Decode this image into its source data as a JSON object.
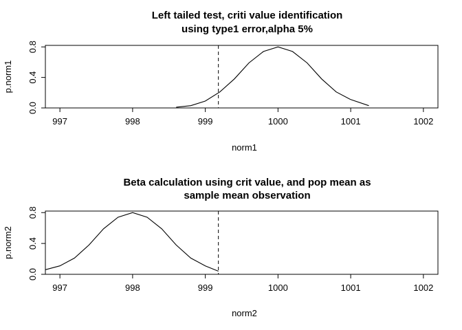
{
  "chart_data": [
    {
      "type": "line",
      "title_lines": [
        "Left tailed test, criti value identification",
        "using type1 error,alpha 5%"
      ],
      "xlabel": "norm1",
      "ylabel": "p.norm1",
      "xlim": [
        996.8,
        1002.2
      ],
      "ylim": [
        0,
        0.82
      ],
      "x_ticks": [
        997,
        998,
        999,
        1000,
        1001,
        1002
      ],
      "y_ticks": [
        0.0,
        0.4,
        0.8
      ],
      "grid": false,
      "legend": "none",
      "critical_value": 999.18,
      "series": [
        {
          "x": [
            998.6,
            998.8,
            999.0,
            999.2,
            999.4,
            999.6,
            999.8,
            1000.0,
            1000.2,
            1000.4,
            1000.6,
            1000.8,
            1001.0,
            1001.25
          ],
          "y": [
            0.01,
            0.03,
            0.09,
            0.21,
            0.38,
            0.59,
            0.74,
            0.8,
            0.74,
            0.59,
            0.38,
            0.21,
            0.11,
            0.03
          ]
        }
      ]
    },
    {
      "type": "line",
      "title_lines": [
        "Beta calculation using crit value, and pop mean as",
        "sample mean observation"
      ],
      "xlabel": "norm2",
      "ylabel": "p.norm2",
      "xlim": [
        996.8,
        1002.2
      ],
      "ylim": [
        0,
        0.82
      ],
      "x_ticks": [
        997,
        998,
        999,
        1000,
        1001,
        1002
      ],
      "y_ticks": [
        0.0,
        0.4,
        0.8
      ],
      "grid": false,
      "legend": "none",
      "critical_value": 999.18,
      "series": [
        {
          "x": [
            996.8,
            997.0,
            997.2,
            997.4,
            997.6,
            997.8,
            998.0,
            998.2,
            998.4,
            998.6,
            998.8,
            999.0,
            999.18
          ],
          "y": [
            0.06,
            0.11,
            0.21,
            0.38,
            0.59,
            0.74,
            0.8,
            0.74,
            0.59,
            0.38,
            0.21,
            0.11,
            0.04
          ]
        }
      ]
    }
  ]
}
